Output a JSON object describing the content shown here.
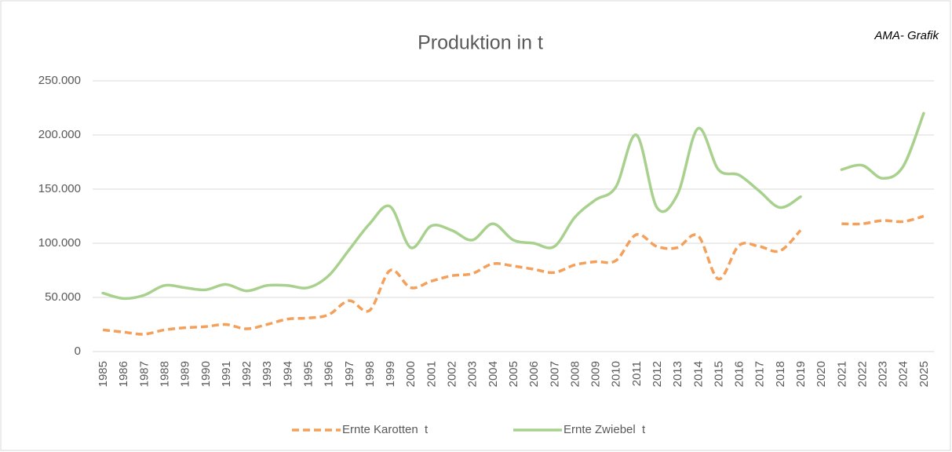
{
  "chart_data": {
    "type": "line",
    "title": "Produktion in t",
    "annotation": "AMA- Grafik",
    "categories": [
      "1985",
      "1986",
      "1987",
      "1988",
      "1989",
      "1990",
      "1991",
      "1992",
      "1993",
      "1994",
      "1995",
      "1996",
      "1997",
      "1998",
      "1999",
      "2000",
      "2001",
      "2002",
      "2003",
      "2004",
      "2005",
      "2006",
      "2007",
      "2008",
      "2009",
      "2010",
      "2011",
      "2012",
      "2013",
      "2014",
      "2015",
      "2016",
      "2017",
      "2018",
      "2019",
      "2020",
      "2021",
      "2022",
      "2023",
      "2024",
      "2025"
    ],
    "series": [
      {
        "name": "Ernte Karotten  t",
        "color": "#f4a05a",
        "dashed": true,
        "values": [
          20000,
          18000,
          16000,
          20000,
          22000,
          23000,
          25000,
          21000,
          25000,
          30000,
          31000,
          34000,
          47000,
          38000,
          75000,
          59000,
          65000,
          70000,
          72000,
          81000,
          79000,
          76000,
          73000,
          80000,
          83000,
          84000,
          108000,
          97000,
          96000,
          107000,
          67000,
          98000,
          97000,
          93000,
          112000,
          null,
          118000,
          118000,
          121000,
          120000,
          125000
        ]
      },
      {
        "name": "Ernte Zwiebel  t",
        "color": "#a9d18e",
        "dashed": false,
        "values": [
          54000,
          49000,
          52000,
          61000,
          59000,
          57000,
          62000,
          56000,
          61000,
          61000,
          59000,
          70000,
          94000,
          118000,
          134000,
          96000,
          116000,
          112000,
          103000,
          118000,
          103000,
          100000,
          97000,
          124000,
          140000,
          152000,
          200000,
          133000,
          145000,
          206000,
          168000,
          163000,
          148000,
          133000,
          143000,
          null,
          168000,
          172000,
          160000,
          171000,
          220000
        ]
      }
    ],
    "ylim": [
      0,
      250000
    ],
    "yticks": [
      {
        "value": 0,
        "label": "0"
      },
      {
        "value": 50000,
        "label": "50.000"
      },
      {
        "value": 100000,
        "label": "100.000"
      },
      {
        "value": 150000,
        "label": "150.000"
      },
      {
        "value": 200000,
        "label": "200.000"
      },
      {
        "value": 250000,
        "label": "250.000"
      }
    ],
    "grid": true,
    "legend": "bottom",
    "smooth": true
  }
}
